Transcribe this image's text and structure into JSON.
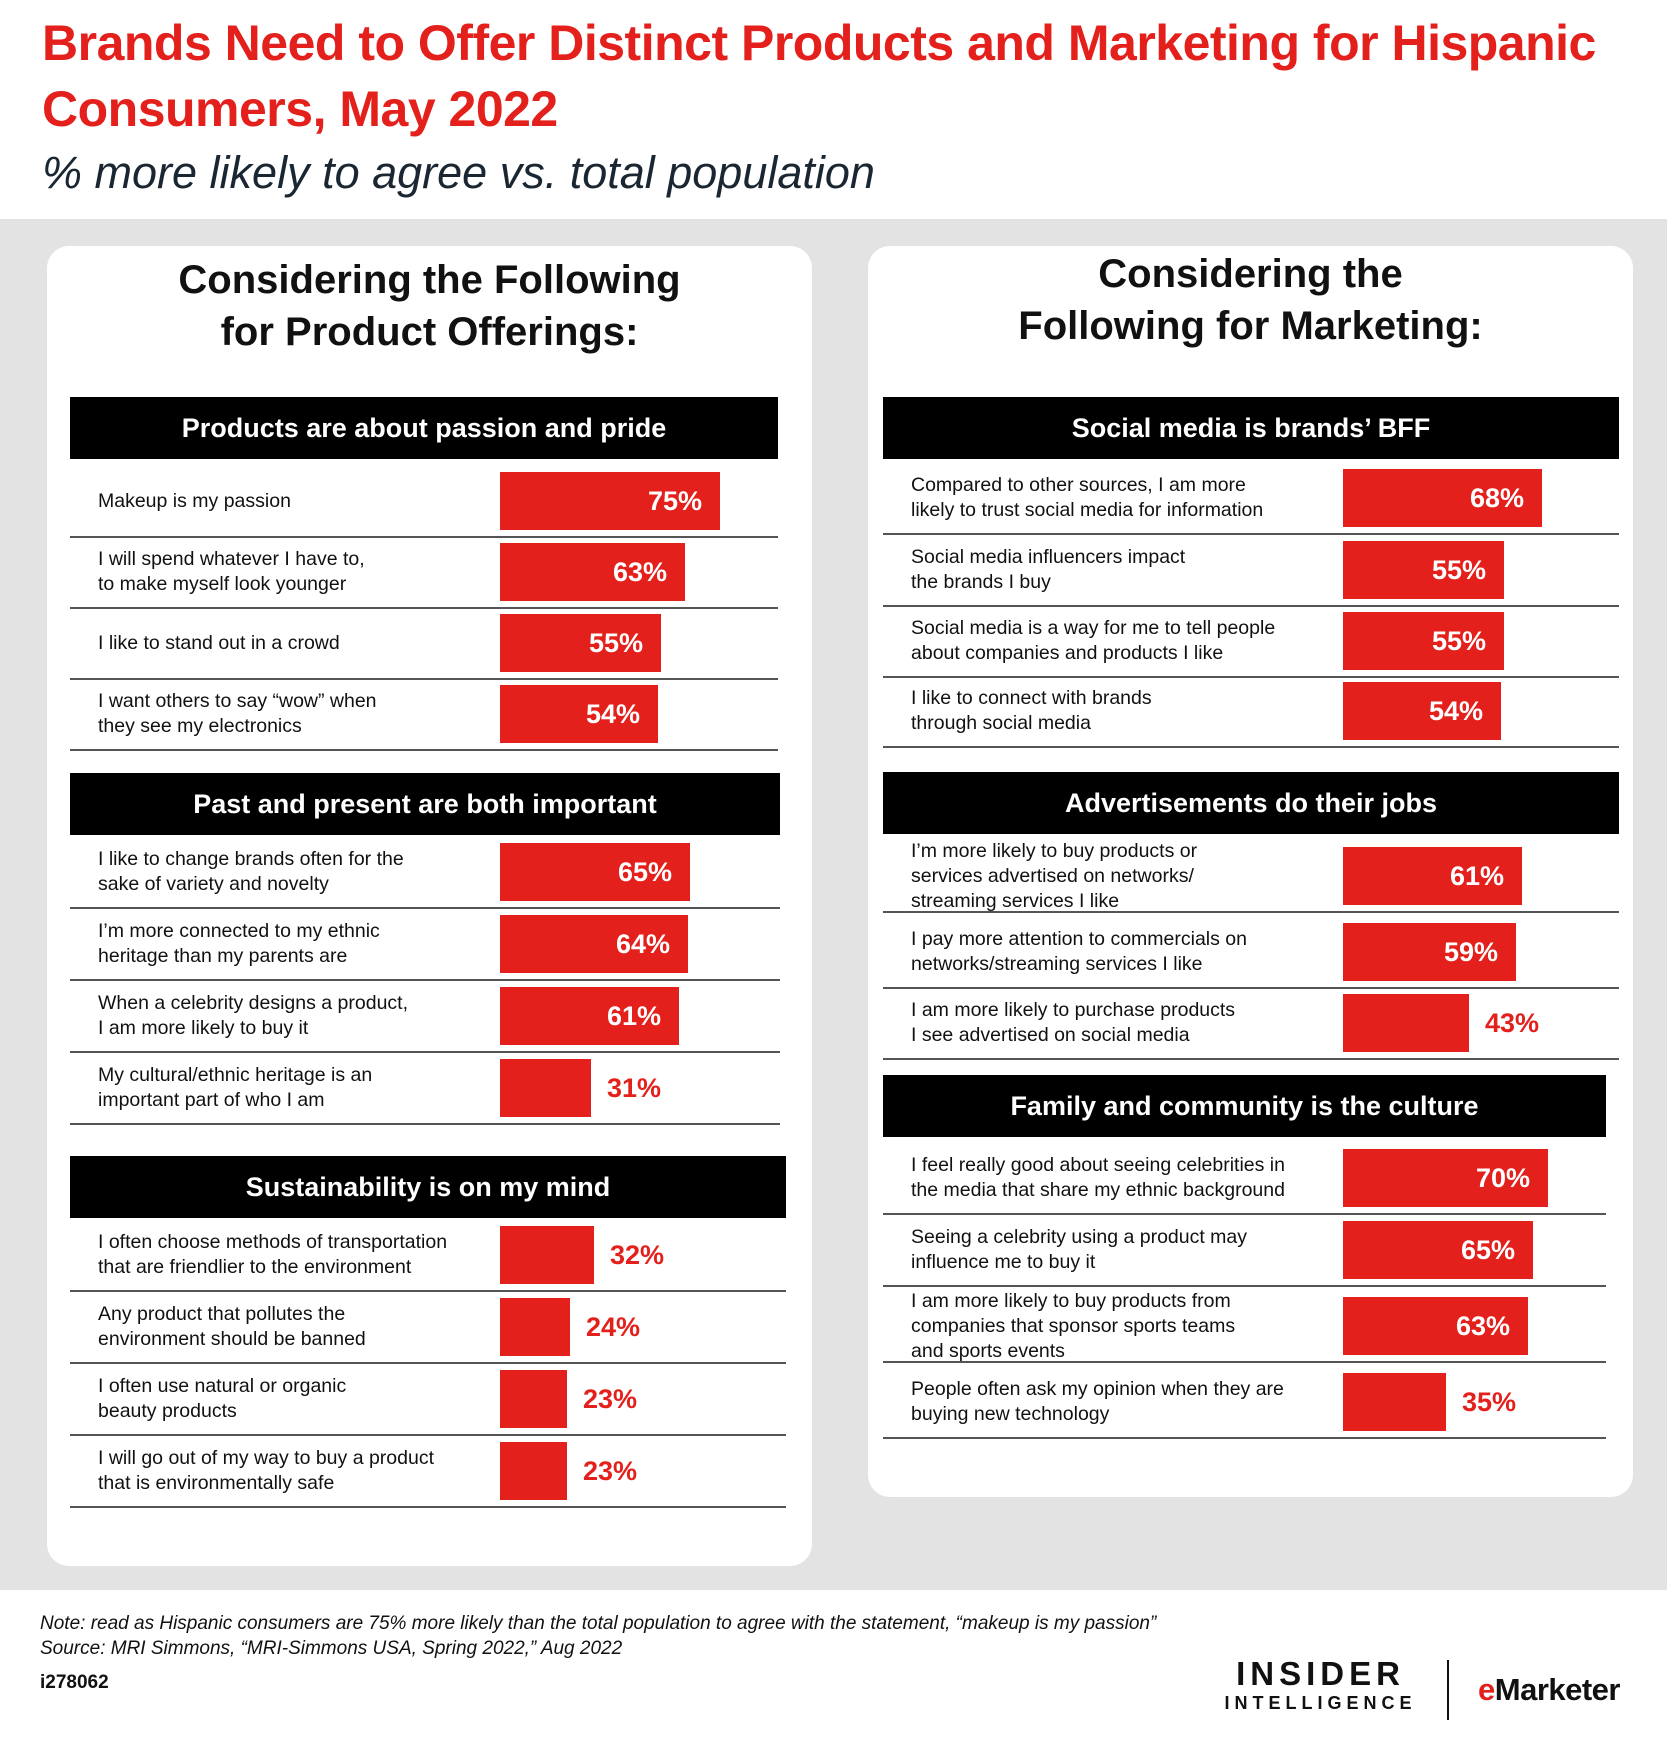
{
  "header": {
    "title": "Brands Need to Offer Distinct Products and Marketing for Hispanic Consumers, May 2022",
    "subtitle": "% more likely to agree vs. total population"
  },
  "left_panel": {
    "title": "Considering the Following\nfor Product Offerings:"
  },
  "right_panel": {
    "title": "Considering the\nFollowing for Marketing:"
  },
  "footer": {
    "note": "Note: read as Hispanic consumers are 75% more likely than the total population to agree with the statement, “makeup is my passion”",
    "source": "Source: MRI Simmons, “MRI-Simmons USA, Spring 2022,” Aug 2022",
    "id": "i278062",
    "logo_insider_line1": "INSIDER",
    "logo_insider_line2": "INTELLIGENCE",
    "logo_emarketer_e": "e",
    "logo_emarketer_rest": "Marketer"
  },
  "colors": {
    "accent": "#e3201b",
    "section_bar": "#000000",
    "background": "#e3e3e3"
  },
  "chart_data": [
    {
      "type": "bar",
      "group": "Considering the Following for Product Offerings:",
      "title": "Products are about passion and pride",
      "categories": [
        "Makeup is my passion",
        "I will spend whatever I have to,\n to make myself look younger",
        "I like to stand out in a crowd",
        "I want others to say “wow” when\nthey see my electronics"
      ],
      "values": [
        75,
        63,
        55,
        54
      ],
      "labels": [
        "75%",
        "63%",
        "55%",
        "54%"
      ]
    },
    {
      "type": "bar",
      "group": "Considering the Following for Product Offerings:",
      "title": "Past and present are both important",
      "categories": [
        "I like to change brands often for the\nsake of variety and novelty",
        "I’m more connected to my ethnic\nheritage than my parents are",
        "When a celebrity designs a product,\n I am more likely to buy it",
        "My cultural/ethnic heritage is an\nimportant part of who I am"
      ],
      "values": [
        65,
        64,
        61,
        31
      ],
      "labels": [
        "65%",
        "64%",
        "61%",
        "31%"
      ]
    },
    {
      "type": "bar",
      "group": "Considering the Following for Product Offerings:",
      "title": "Sustainability is on my mind",
      "categories": [
        "I often choose methods of transportation\nthat are friendlier to the environment",
        "Any product that pollutes the\nenvironment should be banned",
        "I often use natural or organic\nbeauty products",
        "I will go out of my way to buy a product\nthat is environmentally safe"
      ],
      "values": [
        32,
        24,
        23,
        23
      ],
      "labels": [
        "32%",
        "24%",
        "23%",
        "23%"
      ]
    },
    {
      "type": "bar",
      "group": "Considering the Following for Marketing:",
      "title": "Social media is brands’ BFF",
      "categories": [
        "Compared to other sources, I am more\nlikely to trust social media for information",
        "Social media influencers impact\nthe brands I buy",
        "Social media is a way for me to tell people\nabout companies and products I like",
        "I like to connect with brands\nthrough social media"
      ],
      "values": [
        68,
        55,
        55,
        54
      ],
      "labels": [
        "68%",
        "55%",
        "55%",
        "54%"
      ]
    },
    {
      "type": "bar",
      "group": "Considering the Following for Marketing:",
      "title": "Advertisements do their jobs",
      "categories": [
        "I’m more likely to buy products or\nservices advertised on networks/\nstreaming services I like",
        "I pay more attention to commercials on\nnetworks/streaming services I like",
        "I am more likely to purchase products\nI see advertised on social media"
      ],
      "values": [
        61,
        59,
        43
      ],
      "labels": [
        "61%",
        "59%",
        "43%"
      ]
    },
    {
      "type": "bar",
      "group": "Considering the Following for Marketing:",
      "title": "Family and community is the culture",
      "categories": [
        "I feel really good about seeing celebrities in\nthe media that share my ethnic background",
        "Seeing a celebrity using a product may\ninfluence me to buy it",
        "I am more likely to buy products from\n companies that sponsor sports teams\nand sports events",
        "People often ask my opinion when they are\nbuying new technology"
      ],
      "values": [
        70,
        65,
        63,
        35
      ],
      "labels": [
        "70%",
        "65%",
        "63%",
        "35%"
      ]
    }
  ]
}
